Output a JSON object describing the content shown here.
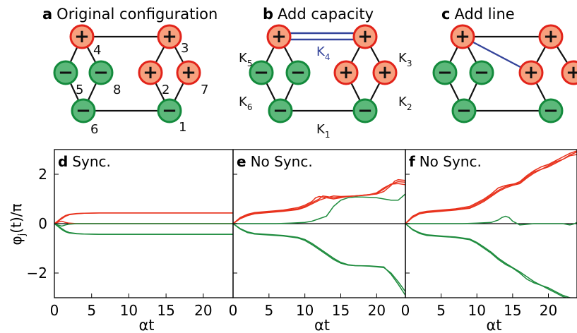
{
  "network_panels": [
    {
      "letter": "a",
      "title": "Original configuration"
    },
    {
      "letter": "b",
      "title": "Add capacity"
    },
    {
      "letter": "c",
      "title": "Add line"
    }
  ],
  "node_symbols": {
    "generator": "+",
    "consumer": "−"
  },
  "node_numbers": [
    "1",
    "2",
    "3",
    "4",
    "5",
    "6",
    "7",
    "8"
  ],
  "edge_labels": {
    "k1": {
      "main": "K",
      "sub": "1"
    },
    "k2": {
      "main": "K",
      "sub": "2"
    },
    "k3": {
      "main": "K",
      "sub": "3"
    },
    "k4": {
      "main": "K",
      "sub": "4"
    },
    "k5": {
      "main": "K",
      "sub": "5"
    },
    "k6": {
      "main": "K",
      "sub": "6"
    }
  },
  "colors": {
    "generator_fill": "#f7a07e",
    "generator_stroke": "#e2231a",
    "consumer_fill": "#5cb87a",
    "consumer_stroke": "#138a3c",
    "edge": "#111111",
    "added_edge": "#34449a",
    "red_series": "#e8321d",
    "green_series": "#1f8c3e"
  },
  "y_axis_label": {
    "main": "φ",
    "sub": "j",
    "rest": "(t)/π"
  },
  "chart_data": [
    {
      "type": "line",
      "letter": "d",
      "title": "Sync.",
      "xlabel": "αt",
      "ylabel": "φj(t)/π",
      "xlim": [
        0,
        24
      ],
      "ylim": [
        -3,
        3
      ],
      "xticks": [
        0,
        5,
        10,
        15,
        20
      ],
      "yticks": [
        2,
        0,
        -2
      ],
      "series": [
        {
          "color": "red",
          "x": [
            0,
            0.5,
            1,
            1.5,
            2,
            3,
            4,
            6,
            10,
            24
          ],
          "y": [
            0,
            0.1,
            0.2,
            0.3,
            0.36,
            0.4,
            0.42,
            0.43,
            0.43,
            0.43
          ]
        },
        {
          "color": "red",
          "x": [
            0,
            0.5,
            1,
            1.5,
            2,
            3,
            4,
            6,
            10,
            24
          ],
          "y": [
            0,
            0.12,
            0.24,
            0.33,
            0.38,
            0.41,
            0.42,
            0.43,
            0.43,
            0.43
          ]
        },
        {
          "color": "red",
          "x": [
            0,
            0.5,
            1,
            1.5,
            2,
            3,
            4,
            6,
            24
          ],
          "y": [
            0,
            0.06,
            0.1,
            0.05,
            0.02,
            0,
            0,
            0,
            0
          ]
        },
        {
          "color": "green",
          "x": [
            0,
            0.5,
            1,
            1.5,
            2,
            3,
            4,
            6,
            10,
            24
          ],
          "y": [
            0,
            -0.1,
            -0.2,
            -0.3,
            -0.36,
            -0.4,
            -0.42,
            -0.43,
            -0.43,
            -0.43
          ]
        },
        {
          "color": "green",
          "x": [
            0,
            0.5,
            1,
            1.5,
            2,
            3,
            4,
            6,
            10,
            24
          ],
          "y": [
            0,
            -0.12,
            -0.24,
            -0.33,
            -0.38,
            -0.41,
            -0.42,
            -0.43,
            -0.43,
            -0.43
          ]
        },
        {
          "color": "green",
          "x": [
            0,
            0.5,
            1,
            1.5,
            2,
            3,
            4,
            6,
            24
          ],
          "y": [
            0,
            -0.06,
            -0.1,
            -0.05,
            -0.02,
            0,
            0,
            0,
            0
          ]
        }
      ]
    },
    {
      "type": "line",
      "letter": "e",
      "title": "No Sync.",
      "xlabel": "αt",
      "xlim": [
        0,
        24
      ],
      "ylim": [
        -3,
        3
      ],
      "xticks": [
        0,
        5,
        10,
        15,
        20
      ],
      "series": [
        {
          "color": "red",
          "x": [
            0,
            1,
            2,
            3,
            5,
            7,
            9,
            10,
            11,
            11.5,
            12,
            13,
            14,
            15,
            16,
            18,
            20,
            21,
            22,
            22.5,
            23,
            24
          ],
          "y": [
            0,
            0.25,
            0.38,
            0.45,
            0.5,
            0.55,
            0.65,
            0.75,
            0.9,
            1.05,
            1.1,
            1.05,
            1.0,
            1.05,
            1.1,
            1.15,
            1.2,
            1.3,
            1.55,
            1.72,
            1.78,
            1.75
          ]
        },
        {
          "color": "red",
          "x": [
            0,
            1,
            2,
            3,
            5,
            7,
            9,
            10,
            11,
            12,
            12.5,
            13,
            14,
            15,
            17,
            19,
            20,
            21,
            22,
            23,
            24
          ],
          "y": [
            0,
            0.22,
            0.35,
            0.43,
            0.48,
            0.52,
            0.6,
            0.7,
            0.85,
            1.0,
            1.12,
            1.1,
            1.05,
            1.08,
            1.12,
            1.16,
            1.22,
            1.4,
            1.6,
            1.7,
            1.68
          ]
        },
        {
          "color": "red",
          "x": [
            0,
            1,
            2,
            3,
            5,
            7,
            9,
            10,
            11,
            12,
            13,
            14,
            15,
            17,
            19,
            20,
            21,
            22,
            23,
            24
          ],
          "y": [
            0,
            0.2,
            0.32,
            0.4,
            0.45,
            0.5,
            0.57,
            0.66,
            0.8,
            0.95,
            1.05,
            1.12,
            1.1,
            1.12,
            1.18,
            1.25,
            1.45,
            1.6,
            1.62,
            1.58
          ]
        },
        {
          "color": "green",
          "x": [
            0,
            2,
            4,
            6,
            8,
            10,
            11,
            12,
            13,
            13.5,
            14,
            15,
            16,
            17,
            18,
            20,
            22,
            23,
            24
          ],
          "y": [
            0,
            0,
            0,
            0,
            0.02,
            0.05,
            0.1,
            0.2,
            0.3,
            0.5,
            0.7,
            0.95,
            1.05,
            1.08,
            1.08,
            1.05,
            0.95,
            0.95,
            1.2
          ]
        },
        {
          "color": "green",
          "x": [
            0,
            1,
            2,
            3,
            5,
            7,
            9,
            10,
            11,
            12,
            13,
            14,
            15,
            16,
            17,
            19,
            21,
            22,
            23,
            24
          ],
          "y": [
            0,
            -0.22,
            -0.36,
            -0.42,
            -0.46,
            -0.5,
            -0.58,
            -0.68,
            -0.85,
            -1.05,
            -1.25,
            -1.45,
            -1.6,
            -1.68,
            -1.7,
            -1.72,
            -1.78,
            -2.0,
            -2.35,
            -2.75
          ]
        },
        {
          "color": "green",
          "x": [
            0,
            1,
            2,
            3,
            5,
            7,
            9,
            10,
            11,
            12,
            13,
            14,
            15,
            16,
            17,
            19,
            21,
            22,
            23,
            24
          ],
          "y": [
            0,
            -0.2,
            -0.33,
            -0.4,
            -0.44,
            -0.48,
            -0.55,
            -0.64,
            -0.8,
            -1.0,
            -1.2,
            -1.4,
            -1.57,
            -1.66,
            -1.7,
            -1.71,
            -1.75,
            -2.05,
            -2.45,
            -2.9
          ]
        }
      ]
    },
    {
      "type": "line",
      "letter": "f",
      "title": "No Sync.",
      "xlabel": "αt",
      "xlim": [
        0,
        24
      ],
      "ylim": [
        -3,
        3
      ],
      "xticks": [
        0,
        5,
        10,
        15,
        20
      ],
      "series": [
        {
          "color": "red",
          "x": [
            0,
            1,
            2,
            3,
            5,
            7,
            9,
            10,
            11,
            12,
            13,
            14,
            15,
            16,
            17,
            18,
            19,
            20,
            21,
            22,
            23,
            24
          ],
          "y": [
            0,
            0.3,
            0.45,
            0.5,
            0.55,
            0.6,
            0.7,
            0.85,
            1.0,
            1.2,
            1.45,
            1.55,
            1.6,
            1.65,
            1.9,
            2.1,
            2.2,
            2.3,
            2.45,
            2.6,
            2.75,
            2.8
          ]
        },
        {
          "color": "red",
          "x": [
            0,
            1,
            2,
            3,
            5,
            7,
            9,
            10,
            11,
            12,
            13,
            14,
            15,
            16,
            17,
            18,
            19,
            20,
            21,
            22,
            23,
            24
          ],
          "y": [
            0,
            0.28,
            0.42,
            0.48,
            0.52,
            0.57,
            0.65,
            0.8,
            0.95,
            1.15,
            1.35,
            1.5,
            1.58,
            1.7,
            1.95,
            2.15,
            2.3,
            2.4,
            2.55,
            2.7,
            2.85,
            2.95
          ]
        },
        {
          "color": "red",
          "x": [
            0,
            1,
            2,
            3,
            5,
            7,
            9,
            10,
            11,
            12,
            13,
            14,
            15,
            16,
            17,
            18,
            19,
            20,
            21,
            22,
            23,
            24
          ],
          "y": [
            0,
            0.25,
            0.4,
            0.45,
            0.5,
            0.55,
            0.62,
            0.75,
            0.9,
            1.1,
            1.3,
            1.45,
            1.55,
            1.62,
            1.85,
            2.05,
            2.2,
            2.35,
            2.5,
            2.6,
            2.78,
            2.9
          ]
        },
        {
          "color": "green",
          "x": [
            0,
            2,
            4,
            6,
            8,
            10,
            12,
            13,
            13.5,
            14,
            14.5,
            15,
            16,
            18,
            20,
            22,
            23,
            23.5,
            24
          ],
          "y": [
            0,
            0,
            0,
            0,
            0,
            0.02,
            0.05,
            0.15,
            0.25,
            0.3,
            0.25,
            0.1,
            -0.05,
            0,
            0,
            0,
            -0.05,
            -0.02,
            0.05
          ]
        },
        {
          "color": "green",
          "x": [
            0,
            1,
            2,
            3,
            5,
            7,
            9,
            10,
            11,
            12,
            13,
            14,
            15,
            16,
            17,
            18,
            19,
            20,
            21,
            22,
            23,
            24
          ],
          "y": [
            0,
            -0.25,
            -0.4,
            -0.48,
            -0.52,
            -0.56,
            -0.65,
            -0.8,
            -1.0,
            -1.2,
            -1.45,
            -1.65,
            -1.8,
            -2.0,
            -2.25,
            -2.4,
            -2.5,
            -2.6,
            -2.75,
            -2.9,
            -3.0,
            -3.05
          ]
        },
        {
          "color": "green",
          "x": [
            0,
            1,
            2,
            3,
            5,
            7,
            9,
            10,
            11,
            12,
            13,
            14,
            15,
            16,
            17,
            18,
            19,
            20,
            21,
            22,
            23,
            24
          ],
          "y": [
            0,
            -0.23,
            -0.37,
            -0.45,
            -0.5,
            -0.54,
            -0.62,
            -0.76,
            -0.95,
            -1.15,
            -1.4,
            -1.6,
            -1.78,
            -1.95,
            -2.15,
            -2.35,
            -2.5,
            -2.65,
            -2.8,
            -2.95,
            -3.05,
            -3.1
          ]
        }
      ]
    }
  ]
}
